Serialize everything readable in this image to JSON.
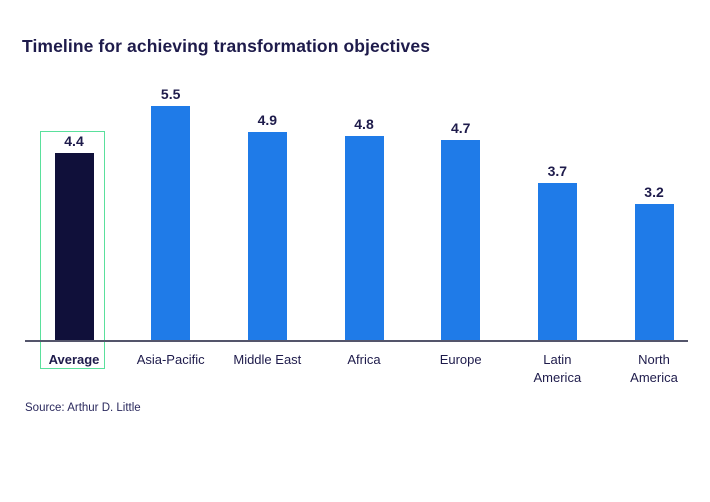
{
  "title": "Timeline for achieving transformation objectives",
  "source": "Source: Arthur D. Little",
  "colors": {
    "bar_default": "#1f7be8",
    "bar_highlight": "#10103a",
    "highlight_outline": "#5ae09c",
    "axis_line": "#54556b",
    "text": "#1e1b4b"
  },
  "chart_data": {
    "type": "bar",
    "title": "Timeline for achieving transformation objectives",
    "categories": [
      "Average",
      "Asia-Pacific",
      "Middle East",
      "Africa",
      "Europe",
      "Latin\nAmerica",
      "North\nAmerica"
    ],
    "values": [
      4.4,
      5.5,
      4.9,
      4.8,
      4.7,
      3.7,
      3.2
    ],
    "value_labels": [
      "4.4",
      "5.5",
      "4.9",
      "4.8",
      "4.7",
      "3.7",
      "3.2"
    ],
    "highlighted_category": "Average",
    "ylim": [
      0,
      5.5
    ],
    "grid": false,
    "legend": false,
    "xlabel": "",
    "ylabel": "",
    "annotations": [
      "Source: Arthur D. Little"
    ]
  }
}
